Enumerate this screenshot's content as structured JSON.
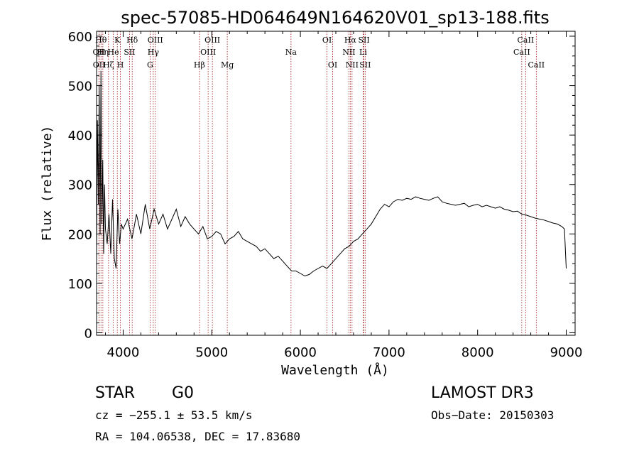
{
  "chart_data": {
    "type": "line",
    "title": "spec-57085-HD064649N164620V01_sp13-188.fits",
    "xlabel": "Wavelength (Å)",
    "ylabel": "Flux (relative)",
    "xlim": [
      3700,
      9100
    ],
    "ylim": [
      -5,
      610
    ],
    "x_ticks": [
      4000,
      5000,
      6000,
      7000,
      8000,
      9000
    ],
    "y_ticks": [
      0,
      100,
      200,
      300,
      400,
      500,
      600
    ],
    "line_color": "#000000",
    "marker_color": "#a01010",
    "series": [
      {
        "x": [
          3700,
          3710,
          3720,
          3730,
          3740,
          3750,
          3760,
          3770,
          3780,
          3790,
          3800,
          3820,
          3840,
          3860,
          3880,
          3900,
          3920,
          3940,
          3960,
          3980,
          4000,
          4050,
          4100,
          4150,
          4200,
          4250,
          4300,
          4350,
          4400,
          4450,
          4500,
          4550,
          4600,
          4650,
          4700,
          4750,
          4800,
          4850,
          4900,
          4950,
          5000,
          5050,
          5100,
          5150,
          5200,
          5250,
          5300,
          5350,
          5400,
          5450,
          5500,
          5550,
          5600,
          5650,
          5700,
          5750,
          5800,
          5850,
          5900,
          5950,
          6000,
          6050,
          6100,
          6150,
          6200,
          6250,
          6300,
          6350,
          6400,
          6450,
          6500,
          6550,
          6600,
          6650,
          6700,
          6750,
          6800,
          6850,
          6900,
          6950,
          7000,
          7050,
          7100,
          7150,
          7200,
          7250,
          7300,
          7350,
          7400,
          7450,
          7500,
          7550,
          7600,
          7650,
          7700,
          7750,
          7800,
          7850,
          7900,
          7950,
          8000,
          8050,
          8100,
          8150,
          8200,
          8250,
          8300,
          8350,
          8400,
          8450,
          8500,
          8550,
          8600,
          8650,
          8700,
          8750,
          8800,
          8850,
          8900,
          8950,
          8980,
          9000
        ],
        "y": [
          160,
          430,
          260,
          500,
          200,
          530,
          220,
          350,
          160,
          300,
          210,
          180,
          240,
          160,
          270,
          150,
          130,
          250,
          180,
          220,
          210,
          230,
          190,
          240,
          200,
          260,
          210,
          250,
          220,
          240,
          210,
          230,
          250,
          215,
          235,
          220,
          210,
          200,
          215,
          190,
          195,
          205,
          200,
          180,
          190,
          195,
          205,
          190,
          185,
          180,
          175,
          165,
          170,
          160,
          150,
          155,
          145,
          135,
          125,
          125,
          120,
          115,
          118,
          125,
          130,
          135,
          130,
          140,
          150,
          160,
          170,
          175,
          185,
          190,
          200,
          210,
          220,
          235,
          250,
          260,
          255,
          265,
          270,
          268,
          272,
          270,
          275,
          272,
          270,
          268,
          272,
          275,
          265,
          262,
          260,
          258,
          260,
          262,
          255,
          258,
          260,
          255,
          258,
          255,
          252,
          255,
          250,
          248,
          245,
          246,
          240,
          238,
          235,
          232,
          230,
          228,
          225,
          222,
          220,
          215,
          210,
          130
        ]
      }
    ],
    "spectral_lines": [
      {
        "label": "OII",
        "x": 3727,
        "row": 1
      },
      {
        "label": "OII",
        "x": 3729,
        "row": 2
      },
      {
        "label": "Hθ",
        "x": 3750,
        "row": 0
      },
      {
        "label": "Hη",
        "x": 3771,
        "row": 1
      },
      {
        "label": "Hζ",
        "x": 3835,
        "row": 2
      },
      {
        "label": "He",
        "x": 3889,
        "row": 1
      },
      {
        "label": "K",
        "x": 3934,
        "row": 0
      },
      {
        "label": "H",
        "x": 3969,
        "row": 2
      },
      {
        "label": "SII",
        "x": 4072,
        "row": 1
      },
      {
        "label": "Hδ",
        "x": 4102,
        "row": 0
      },
      {
        "label": "G",
        "x": 4304,
        "row": 2
      },
      {
        "label": "Hγ",
        "x": 4340,
        "row": 1
      },
      {
        "label": "OIII",
        "x": 4363,
        "row": 0
      },
      {
        "label": "Hβ",
        "x": 4861,
        "row": 2
      },
      {
        "label": "OIII",
        "x": 4959,
        "row": 1
      },
      {
        "label": "OIII",
        "x": 5007,
        "row": 0
      },
      {
        "label": "Mg",
        "x": 5175,
        "row": 2
      },
      {
        "label": "Na",
        "x": 5894,
        "row": 1
      },
      {
        "label": "OI",
        "x": 6300,
        "row": 0
      },
      {
        "label": "OI",
        "x": 6364,
        "row": 2
      },
      {
        "label": "NII",
        "x": 6548,
        "row": 1
      },
      {
        "label": "Hα",
        "x": 6563,
        "row": 0
      },
      {
        "label": "NII",
        "x": 6583,
        "row": 2
      },
      {
        "label": "Li",
        "x": 6708,
        "row": 1
      },
      {
        "label": "SII",
        "x": 6717,
        "row": 0
      },
      {
        "label": "SII",
        "x": 6731,
        "row": 2
      },
      {
        "label": "CaII",
        "x": 8498,
        "row": 1
      },
      {
        "label": "CaII",
        "x": 8542,
        "row": 0
      },
      {
        "label": "CaII",
        "x": 8662,
        "row": 2
      }
    ]
  },
  "info": {
    "object_class": "STAR",
    "subclass": "G0",
    "survey": "LAMOST DR3",
    "cz": "cz = −255.1 ± 53.5 km/s",
    "obs_date": "Obs−Date: 20150303",
    "coords": "RA = 104.06538, DEC =  17.83680"
  }
}
